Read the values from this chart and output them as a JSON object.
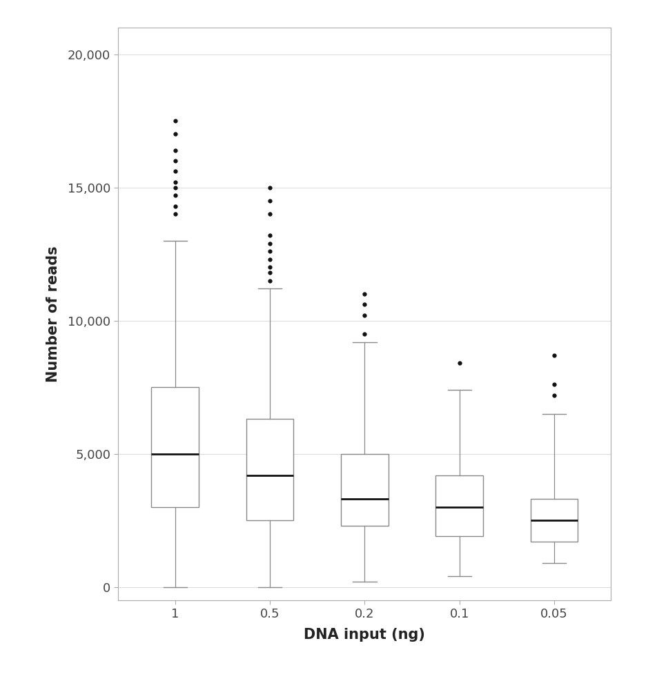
{
  "categories": [
    "1",
    "0.5",
    "0.2",
    "0.1",
    "0.05"
  ],
  "xlabel": "DNA input (ng)",
  "ylabel": "Number of reads",
  "ylim": [
    -500,
    21000
  ],
  "yticks": [
    0,
    5000,
    10000,
    15000,
    20000
  ],
  "ytick_labels": [
    "0",
    "5,000",
    "10,000",
    "15,000",
    "20,000"
  ],
  "background_color": "#ffffff",
  "plot_bg_color": "#ffffff",
  "box_facecolor": "white",
  "box_edgecolor": "#888888",
  "median_color": "#111111",
  "whisker_color": "#888888",
  "cap_color": "#888888",
  "flier_color": "#111111",
  "grid_color": "#dddddd",
  "spine_color": "#aaaaaa",
  "tick_color": "#444444",
  "label_color": "#222222",
  "boxes": [
    {
      "q1": 3000,
      "median": 5000,
      "q3": 7500,
      "whislo": 0,
      "whishi": 13000,
      "fliers": [
        14000,
        14300,
        14700,
        15000,
        15200,
        15600,
        16000,
        16400,
        17000,
        17500
      ]
    },
    {
      "q1": 2500,
      "median": 4200,
      "q3": 6300,
      "whislo": 0,
      "whishi": 11200,
      "fliers": [
        11500,
        11800,
        12000,
        12300,
        12600,
        12900,
        13200,
        14000,
        14500,
        15000
      ]
    },
    {
      "q1": 2300,
      "median": 3300,
      "q3": 5000,
      "whislo": 200,
      "whishi": 9200,
      "fliers": [
        9500,
        10200,
        10600,
        11000
      ]
    },
    {
      "q1": 1900,
      "median": 3000,
      "q3": 4200,
      "whislo": 400,
      "whishi": 7400,
      "fliers": [
        8400
      ]
    },
    {
      "q1": 1700,
      "median": 2500,
      "q3": 3300,
      "whislo": 900,
      "whishi": 6500,
      "fliers": [
        7200,
        7600,
        8700
      ]
    }
  ]
}
